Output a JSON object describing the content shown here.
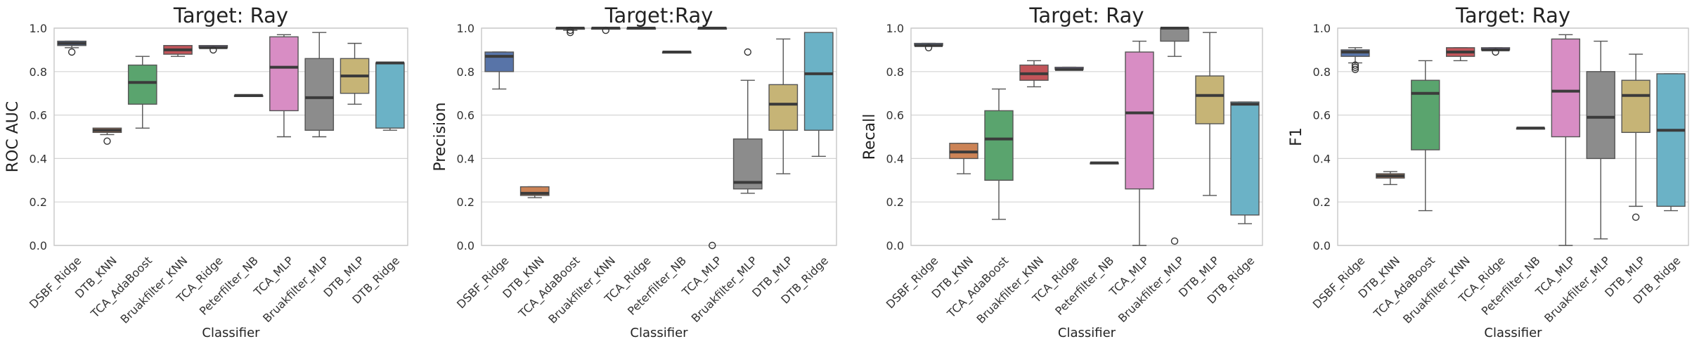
{
  "chart_data": [
    {
      "type": "box",
      "title": "Target: Ray",
      "xlabel": "Classifier",
      "ylabel": "ROC AUC",
      "ylim": [
        0,
        1
      ],
      "yticks": [
        "0.0",
        "0.2",
        "0.4",
        "0.6",
        "0.8",
        "1.0"
      ],
      "grid": "horizontal",
      "categories": [
        "DSBF_Ridge",
        "DTB_KNN",
        "TCA_AdaBoost",
        "Bruakfilter_KNN",
        "TCA_Ridge",
        "Peterfilter_NB",
        "TCA_MLP",
        "Bruakfilter_MLP",
        "DTB_MLP",
        "DTB_Ridge"
      ],
      "boxes": [
        {
          "min": 0.91,
          "q1": 0.92,
          "median": 0.93,
          "q3": 0.94,
          "max": 0.94,
          "outliers": [
            0.89
          ]
        },
        {
          "min": 0.51,
          "q1": 0.52,
          "median": 0.53,
          "q3": 0.54,
          "max": 0.54,
          "outliers": [
            0.48
          ]
        },
        {
          "min": 0.54,
          "q1": 0.65,
          "median": 0.75,
          "q3": 0.83,
          "max": 0.87,
          "outliers": []
        },
        {
          "min": 0.87,
          "q1": 0.88,
          "median": 0.9,
          "q3": 0.92,
          "max": 0.92,
          "outliers": []
        },
        {
          "min": 0.91,
          "q1": 0.91,
          "median": 0.91,
          "q3": 0.92,
          "max": 0.92,
          "outliers": [
            0.9
          ]
        },
        {
          "min": 0.69,
          "q1": 0.69,
          "median": 0.69,
          "q3": 0.69,
          "max": 0.69,
          "outliers": []
        },
        {
          "min": 0.5,
          "q1": 0.62,
          "median": 0.82,
          "q3": 0.96,
          "max": 0.97,
          "outliers": []
        },
        {
          "min": 0.5,
          "q1": 0.53,
          "median": 0.68,
          "q3": 0.86,
          "max": 0.98,
          "outliers": []
        },
        {
          "min": 0.65,
          "q1": 0.7,
          "median": 0.78,
          "q3": 0.86,
          "max": 0.93,
          "outliers": []
        },
        {
          "min": 0.53,
          "q1": 0.54,
          "median": 0.84,
          "q3": 0.84,
          "max": 0.84,
          "outliers": []
        }
      ]
    },
    {
      "type": "box",
      "title": "Target:Ray",
      "xlabel": "Classifier",
      "ylabel": "Precision",
      "ylim": [
        0,
        1
      ],
      "yticks": [
        "0.0",
        "0.2",
        "0.4",
        "0.6",
        "0.8",
        "1.0"
      ],
      "grid": "horizontal",
      "categories": [
        "DSBF_Ridge",
        "DTB_KNN",
        "TCA_AdaBoost",
        "Bruakfilter_KNN",
        "TCA_Ridge",
        "Peterfilter_NB",
        "TCA_MLP",
        "Bruakfilter_MLP",
        "DTB_MLP",
        "DTB_Ridge"
      ],
      "boxes": [
        {
          "min": 0.72,
          "q1": 0.8,
          "median": 0.87,
          "q3": 0.89,
          "max": 0.89,
          "outliers": []
        },
        {
          "min": 0.22,
          "q1": 0.23,
          "median": 0.24,
          "q3": 0.27,
          "max": 0.27,
          "outliers": []
        },
        {
          "min": 0.99,
          "q1": 0.995,
          "median": 1.0,
          "q3": 1.0,
          "max": 1.0,
          "outliers": [
            0.98,
            0.99
          ]
        },
        {
          "min": 1.0,
          "q1": 1.0,
          "median": 1.0,
          "q3": 1.0,
          "max": 1.0,
          "outliers": [
            0.99
          ]
        },
        {
          "min": 1.0,
          "q1": 1.0,
          "median": 1.0,
          "q3": 1.0,
          "max": 1.0,
          "outliers": []
        },
        {
          "min": 0.89,
          "q1": 0.89,
          "median": 0.89,
          "q3": 0.89,
          "max": 0.89,
          "outliers": []
        },
        {
          "min": 1.0,
          "q1": 1.0,
          "median": 1.0,
          "q3": 1.0,
          "max": 1.0,
          "outliers": [
            0.0
          ]
        },
        {
          "min": 0.24,
          "q1": 0.26,
          "median": 0.29,
          "q3": 0.49,
          "max": 0.76,
          "outliers": [
            0.89
          ]
        },
        {
          "min": 0.33,
          "q1": 0.53,
          "median": 0.65,
          "q3": 0.74,
          "max": 0.95,
          "outliers": []
        },
        {
          "min": 0.41,
          "q1": 0.53,
          "median": 0.79,
          "q3": 0.98,
          "max": 0.98,
          "outliers": []
        }
      ]
    },
    {
      "type": "box",
      "title": "Target: Ray",
      "xlabel": "Classifier",
      "ylabel": "Recall",
      "ylim": [
        0,
        1
      ],
      "yticks": [
        "0.0",
        "0.2",
        "0.4",
        "0.6",
        "0.8",
        "1.0"
      ],
      "grid": "horizontal",
      "categories": [
        "DSBF_Ridge",
        "DTB_KNN",
        "TCA_AdaBoost",
        "Bruakfilter_KNN",
        "TCA_Ridge",
        "Peterfilter_NB",
        "TCA_MLP",
        "Bruakfilter_MLP",
        "DTB_MLP",
        "DTB_Ridge"
      ],
      "boxes": [
        {
          "min": 0.92,
          "q1": 0.92,
          "median": 0.92,
          "q3": 0.93,
          "max": 0.93,
          "outliers": [
            0.91
          ]
        },
        {
          "min": 0.33,
          "q1": 0.4,
          "median": 0.43,
          "q3": 0.47,
          "max": 0.47,
          "outliers": []
        },
        {
          "min": 0.12,
          "q1": 0.3,
          "median": 0.49,
          "q3": 0.62,
          "max": 0.72,
          "outliers": []
        },
        {
          "min": 0.73,
          "q1": 0.76,
          "median": 0.79,
          "q3": 0.83,
          "max": 0.85,
          "outliers": []
        },
        {
          "min": 0.81,
          "q1": 0.81,
          "median": 0.81,
          "q3": 0.82,
          "max": 0.82,
          "outliers": []
        },
        {
          "min": 0.38,
          "q1": 0.38,
          "median": 0.38,
          "q3": 0.38,
          "max": 0.38,
          "outliers": []
        },
        {
          "min": 0.0,
          "q1": 0.26,
          "median": 0.61,
          "q3": 0.89,
          "max": 0.94,
          "outliers": []
        },
        {
          "min": 0.87,
          "q1": 0.94,
          "median": 1.0,
          "q3": 1.0,
          "max": 1.0,
          "outliers": [
            0.02
          ]
        },
        {
          "min": 0.23,
          "q1": 0.56,
          "median": 0.69,
          "q3": 0.78,
          "max": 0.98,
          "outliers": []
        },
        {
          "min": 0.1,
          "q1": 0.14,
          "median": 0.65,
          "q3": 0.66,
          "max": 0.66,
          "outliers": []
        }
      ]
    },
    {
      "type": "box",
      "title": "Target: Ray",
      "xlabel": "Classifier",
      "ylabel": "F1",
      "ylim": [
        0,
        1
      ],
      "yticks": [
        "0.0",
        "0.2",
        "0.4",
        "0.6",
        "0.8",
        "1.0"
      ],
      "grid": "horizontal",
      "categories": [
        "DSBF_Ridge",
        "DTB_KNN",
        "TCA_AdaBoost",
        "Bruakfilter_KNN",
        "TCA_Ridge",
        "Peterfilter_NB",
        "TCA_MLP",
        "Bruakfilter_MLP",
        "DTB_MLP",
        "DTB_Ridge"
      ],
      "boxes": [
        {
          "min": 0.84,
          "q1": 0.87,
          "median": 0.89,
          "q3": 0.9,
          "max": 0.91,
          "outliers": [
            0.82,
            0.81,
            0.83
          ]
        },
        {
          "min": 0.28,
          "q1": 0.31,
          "median": 0.32,
          "q3": 0.33,
          "max": 0.34,
          "outliers": []
        },
        {
          "min": 0.16,
          "q1": 0.44,
          "median": 0.7,
          "q3": 0.76,
          "max": 0.85,
          "outliers": []
        },
        {
          "min": 0.85,
          "q1": 0.87,
          "median": 0.89,
          "q3": 0.91,
          "max": 0.91,
          "outliers": []
        },
        {
          "min": 0.9,
          "q1": 0.9,
          "median": 0.9,
          "q3": 0.91,
          "max": 0.91,
          "outliers": [
            0.89
          ]
        },
        {
          "min": 0.54,
          "q1": 0.54,
          "median": 0.54,
          "q3": 0.54,
          "max": 0.54,
          "outliers": []
        },
        {
          "min": 0.0,
          "q1": 0.5,
          "median": 0.71,
          "q3": 0.95,
          "max": 0.97,
          "outliers": []
        },
        {
          "min": 0.03,
          "q1": 0.4,
          "median": 0.59,
          "q3": 0.8,
          "max": 0.94,
          "outliers": []
        },
        {
          "min": 0.18,
          "q1": 0.52,
          "median": 0.69,
          "q3": 0.76,
          "max": 0.88,
          "outliers": [
            0.13
          ]
        },
        {
          "min": 0.16,
          "q1": 0.18,
          "median": 0.53,
          "q3": 0.79,
          "max": 0.79,
          "outliers": []
        }
      ]
    }
  ],
  "colors": [
    "#5874a8",
    "#cc8356",
    "#5aa46e",
    "#c2555a",
    "#8172b3",
    "#937860",
    "#d88dc4",
    "#8c8c8c",
    "#c6b476",
    "#6bb2c6"
  ]
}
